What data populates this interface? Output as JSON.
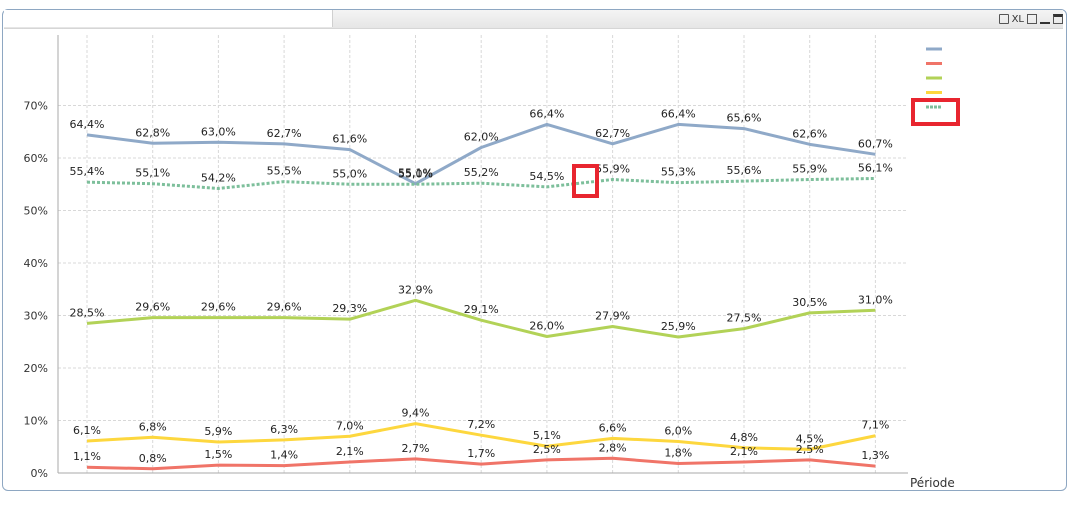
{
  "caption": {
    "xl_label": "XL"
  },
  "colors": {
    "grid": "#d8d8d8",
    "axis": "#aaaaaa",
    "highlight": "#e8252f",
    "frame": "#8ea7c2"
  },
  "chart_data": {
    "type": "line",
    "title": "",
    "xlabel": "Période",
    "ylabel": "",
    "ylim": [
      0,
      80
    ],
    "yticks": [
      0,
      10,
      20,
      30,
      40,
      50,
      60,
      70
    ],
    "ytick_labels": [
      "0%",
      "10%",
      "20%",
      "30%",
      "40%",
      "50%",
      "60%",
      "70%"
    ],
    "grid": true,
    "legend_position": "right",
    "categories": [
      "",
      "",
      "",
      "",
      "",
      "",
      "",
      "",
      "",
      "",
      "",
      "",
      ""
    ],
    "series": [
      {
        "color": "#8fa9c8",
        "style": "solid",
        "values": [
          64.4,
          62.8,
          63.0,
          62.7,
          61.6,
          55.1,
          62.0,
          66.4,
          62.7,
          66.4,
          65.6,
          62.6,
          60.7
        ],
        "labels": [
          "64,4%",
          "62,8%",
          "63,0%",
          "62,7%",
          "61,6%",
          "55,1%",
          "62,0%",
          "66,4%",
          "62,7%",
          "66,4%",
          "65,6%",
          "62,6%",
          "60,7%"
        ]
      },
      {
        "color": "#f07468",
        "style": "solid",
        "values": [
          1.1,
          0.8,
          1.5,
          1.4,
          2.1,
          2.7,
          1.7,
          2.5,
          2.8,
          1.8,
          2.1,
          2.5,
          1.3
        ],
        "labels": [
          "1,1%",
          "0,8%",
          "1,5%",
          "1,4%",
          "2,1%",
          "2,7%",
          "1,7%",
          "2,5%",
          "2,8%",
          "1,8%",
          "2,1%",
          "2,5%",
          "1,3%"
        ]
      },
      {
        "color": "#b2d257",
        "style": "solid",
        "values": [
          28.5,
          29.6,
          29.6,
          29.6,
          29.3,
          32.9,
          29.1,
          26.0,
          27.9,
          25.9,
          27.5,
          30.5,
          31.0
        ],
        "labels": [
          "28,5%",
          "29,6%",
          "29,6%",
          "29,6%",
          "29,3%",
          "32,9%",
          "29,1%",
          "26,0%",
          "27,9%",
          "25,9%",
          "27,5%",
          "30,5%",
          "31,0%"
        ]
      },
      {
        "color": "#fdd73e",
        "style": "solid",
        "values": [
          6.1,
          6.8,
          5.9,
          6.3,
          7.0,
          9.4,
          7.2,
          5.1,
          6.6,
          6.0,
          4.8,
          4.5,
          7.1
        ],
        "labels": [
          "6,1%",
          "6,8%",
          "5,9%",
          "6,3%",
          "7,0%",
          "9,4%",
          "7,2%",
          "5,1%",
          "6,6%",
          "6,0%",
          "4,8%",
          "4,5%",
          "7,1%"
        ]
      },
      {
        "color": "#7dbf9b",
        "style": "dotted",
        "values": [
          55.4,
          55.1,
          54.2,
          55.5,
          55.0,
          55.0,
          55.2,
          54.5,
          55.9,
          55.3,
          55.6,
          55.9,
          56.1
        ],
        "labels": [
          "55,4%",
          "55,1%",
          "54,2%",
          "55,5%",
          "55,0%",
          "55,0%",
          "55,2%",
          "54,5%",
          "55,9%",
          "55,3%",
          "55,6%",
          "55,9%",
          "56,1%"
        ]
      }
    ],
    "legend": [
      {
        "color": "#8fa9c8",
        "label": ""
      },
      {
        "color": "#f07468",
        "label": ""
      },
      {
        "color": "#b2d257",
        "label": ""
      },
      {
        "color": "#fdd73e",
        "label": ""
      },
      {
        "color": "#7dbf9b",
        "label": "",
        "highlighted": true
      }
    ],
    "annotations": [
      {
        "type": "highlight-box",
        "target": "series-5-point-9"
      },
      {
        "type": "highlight-box",
        "target": "legend-item-5"
      }
    ]
  }
}
